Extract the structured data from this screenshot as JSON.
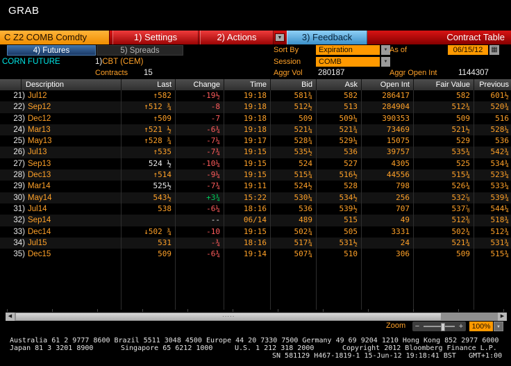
{
  "window": {
    "title": "GRAB"
  },
  "toolbar": {
    "ticker": "C Z2 COMB Comdty",
    "settings_label": "1) Settings",
    "actions_label": "2) Actions",
    "feedback_label": "3) Feedback",
    "page_title": "Contract Table"
  },
  "tabs": {
    "futures": "4) Futures",
    "spreads": "5) Spreads"
  },
  "info": {
    "instrument": "CORN FUTURE",
    "exchange_num": "1)",
    "exchange_name": "CBT (CEM)",
    "contracts_label": "Contracts",
    "contracts_value": "15",
    "sort_by_label": "Sort By",
    "sort_by_value": "Expiration",
    "as_of_label": "As of",
    "as_of_value": "06/15/12",
    "session_label": "Session",
    "session_value": "COMB",
    "aggr_vol_label": "Aggr Vol",
    "aggr_vol_value": "280187",
    "aggr_open_int_label": "Aggr Open Int",
    "aggr_open_int_value": "1144307"
  },
  "table": {
    "columns": [
      "Description",
      "Last",
      "Change",
      "Time",
      "Bid",
      "Ask",
      "Open Int",
      "Fair Value",
      "Previous"
    ],
    "rows": [
      {
        "num": "21)",
        "name": "Jul12",
        "last": "↑582",
        "last_color": "amber",
        "change": "-19½",
        "change_color": "red",
        "time": "19:18",
        "bid": "581¾",
        "ask": "582",
        "open_int": "286417",
        "fair_value": "582",
        "previous": "601½"
      },
      {
        "num": "22)",
        "name": "Sep12",
        "last": "↑512 ¾",
        "last_color": "amber",
        "change": "-8",
        "change_color": "red",
        "time": "19:18",
        "bid": "512½",
        "ask": "513",
        "open_int": "284904",
        "fair_value": "512¾",
        "previous": "520¾"
      },
      {
        "num": "23)",
        "name": "Dec12",
        "last": "↑509",
        "last_color": "amber",
        "change": "-7",
        "change_color": "red",
        "time": "19:18",
        "bid": "509",
        "ask": "509¼",
        "open_int": "390353",
        "fair_value": "509",
        "previous": "516"
      },
      {
        "num": "24)",
        "name": "Mar13",
        "last": "↑521 ½",
        "last_color": "amber",
        "change": "-6¾",
        "change_color": "red",
        "time": "19:18",
        "bid": "521¼",
        "ask": "521¾",
        "open_int": "73469",
        "fair_value": "521½",
        "previous": "528¼"
      },
      {
        "num": "25)",
        "name": "May13",
        "last": "↑528 ¾",
        "last_color": "amber",
        "change": "-7¼",
        "change_color": "red",
        "time": "19:17",
        "bid": "528¾",
        "ask": "529¼",
        "open_int": "15075",
        "fair_value": "529",
        "previous": "536"
      },
      {
        "num": "26)",
        "name": "Jul13",
        "last": "↑535",
        "last_color": "amber",
        "change": "-7¾",
        "change_color": "red",
        "time": "19:15",
        "bid": "535½",
        "ask": "536",
        "open_int": "39757",
        "fair_value": "535¾",
        "previous": "542¾"
      },
      {
        "num": "27)",
        "name": "Sep13",
        "last": "524 ½",
        "last_color": "white",
        "change": "-10¼",
        "change_color": "red",
        "time": "19:15",
        "bid": "524",
        "ask": "527",
        "open_int": "4305",
        "fair_value": "525",
        "previous": "534¾"
      },
      {
        "num": "28)",
        "name": "Dec13",
        "last": "↑514",
        "last_color": "amber",
        "change": "-9¼",
        "change_color": "red",
        "time": "19:15",
        "bid": "515¾",
        "ask": "516½",
        "open_int": "44556",
        "fair_value": "515¾",
        "previous": "523¼"
      },
      {
        "num": "29)",
        "name": "Mar14",
        "last": "525½",
        "last_color": "white",
        "change": "-7¾",
        "change_color": "red",
        "time": "19:11",
        "bid": "524½",
        "ask": "528",
        "open_int": "798",
        "fair_value": "526¾",
        "previous": "533¼"
      },
      {
        "num": "30)",
        "name": "May14",
        "last": "543½",
        "last_color": "amber",
        "change": "+3¾",
        "change_color": "green",
        "time": "15:22",
        "bid": "530¼",
        "ask": "534½",
        "open_int": "256",
        "fair_value": "532⅞",
        "previous": "539¾"
      },
      {
        "num": "31)",
        "name": "Jul14",
        "last": "538",
        "last_color": "amber",
        "change": "-6¼",
        "change_color": "red",
        "time": "18:16",
        "bid": "536",
        "ask": "539½",
        "open_int": "707",
        "fair_value": "537⅞",
        "previous": "544¼"
      },
      {
        "num": "32)",
        "name": "Sep14",
        "last": "",
        "last_color": "amber",
        "change": "--",
        "change_color": "white",
        "time": "06/14",
        "bid": "489",
        "ask": "515",
        "open_int": "49",
        "fair_value": "512⅜",
        "previous": "518¾"
      },
      {
        "num": "33)",
        "name": "Dec14",
        "last": "↓502 ¾",
        "last_color": "amber",
        "change": "-10",
        "change_color": "red",
        "time": "19:15",
        "bid": "502¾",
        "ask": "505",
        "open_int": "3331",
        "fair_value": "502¾",
        "previous": "512¾"
      },
      {
        "num": "34)",
        "name": "Jul15",
        "last": "531",
        "last_color": "amber",
        "change": "-¾",
        "change_color": "red",
        "time": "18:16",
        "bid": "517¾",
        "ask": "531½",
        "open_int": "24",
        "fair_value": "521¾",
        "previous": "531¾"
      },
      {
        "num": "35)",
        "name": "Dec15",
        "last": "509",
        "last_color": "amber",
        "change": "-6¾",
        "change_color": "red",
        "time": "19:14",
        "bid": "507¾",
        "ask": "510",
        "open_int": "306",
        "fair_value": "509",
        "previous": "515¾"
      }
    ]
  },
  "zoom": {
    "label": "Zoom",
    "minus": "−",
    "plus": "+",
    "value": "100%"
  },
  "scrollbar": {
    "left_arrow": "◀",
    "right_arrow": "▶",
    "grip": "·····"
  },
  "footer": {
    "line1": "Australia 61 2 9777 8600 Brazil 5511 3048 4500 Europe 44 20 7330 7500 Germany 49 69 9204 1210 Hong Kong 852 2977 6000",
    "japan": "Japan 81 3 3201 8900",
    "singapore": "Singapore 65 6212 1000",
    "us": "U.S. 1 212 318 2000",
    "copyright": "Copyright 2012 Bloomberg Finance L.P.",
    "line3": "SN 581129 H467-1819-1 15-Jun-12 19:18:41 BST   GMT+1:00"
  },
  "colors": {
    "amber": "#ffa128",
    "red": "#ff5c5c",
    "green": "#00cc5c",
    "cyan": "#00e6e6",
    "bar_red": "#c00f0f",
    "field_orange": "#ff9900"
  }
}
